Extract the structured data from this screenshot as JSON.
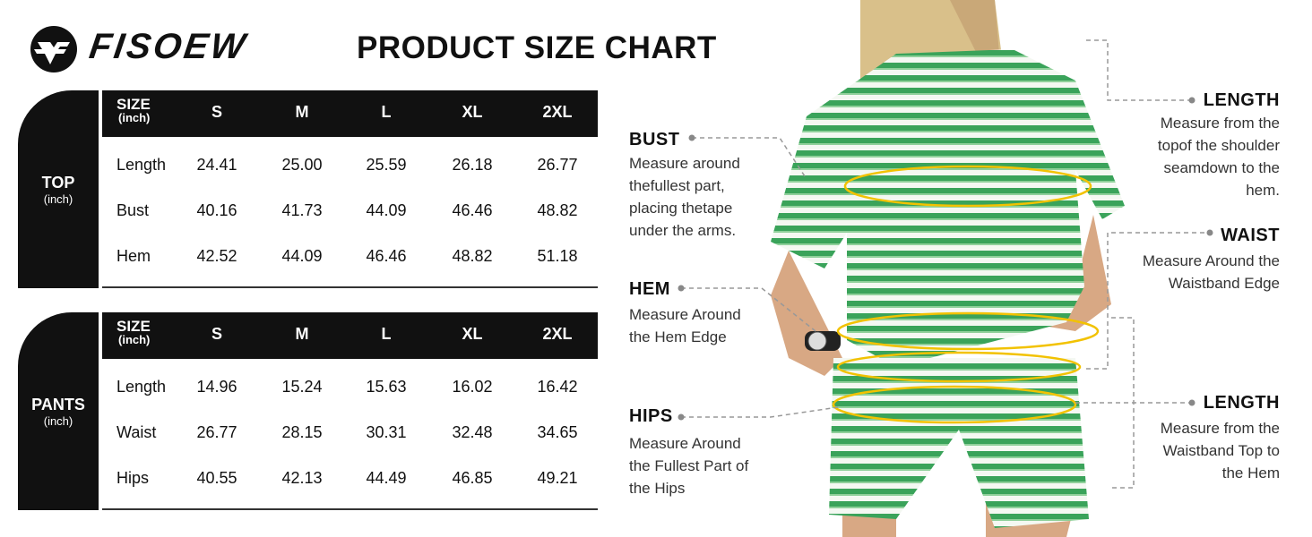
{
  "brand": {
    "name": "FISOEW"
  },
  "title": "PRODUCT SIZE CHART",
  "tables": [
    {
      "section": "TOP",
      "unit": "(inch)",
      "size_label": "SIZE",
      "size_unit": "(inch)",
      "sizes": [
        "S",
        "M",
        "L",
        "XL",
        "2XL"
      ],
      "rows": [
        {
          "label": "Length",
          "values": [
            "24.41",
            "25.00",
            "25.59",
            "26.18",
            "26.77"
          ]
        },
        {
          "label": "Bust",
          "values": [
            "40.16",
            "41.73",
            "44.09",
            "46.46",
            "48.82"
          ]
        },
        {
          "label": "Hem",
          "values": [
            "42.52",
            "44.09",
            "46.46",
            "48.82",
            "51.18"
          ]
        }
      ]
    },
    {
      "section": "PANTS",
      "unit": "(inch)",
      "size_label": "SIZE",
      "size_unit": "(inch)",
      "sizes": [
        "S",
        "M",
        "L",
        "XL",
        "2XL"
      ],
      "rows": [
        {
          "label": "Length",
          "values": [
            "14.96",
            "15.24",
            "15.63",
            "16.02",
            "16.42"
          ]
        },
        {
          "label": "Waist",
          "values": [
            "26.77",
            "28.15",
            "30.31",
            "32.48",
            "34.65"
          ]
        },
        {
          "label": "Hips",
          "values": [
            "40.55",
            "42.13",
            "44.49",
            "46.85",
            "49.21"
          ]
        }
      ]
    }
  ],
  "annotations": {
    "bust": {
      "label": "BUST",
      "lines": [
        "Measure around",
        "thefullest part,",
        "placing thetape",
        "under the arms."
      ]
    },
    "hem": {
      "label": "HEM",
      "lines": [
        "Measure Around",
        "the Hem Edge"
      ]
    },
    "hips": {
      "label": "HIPS",
      "lines": [
        "Measure Around",
        "the Fullest Part of",
        "the Hips"
      ]
    },
    "top_length": {
      "label": "LENGTH",
      "lines": [
        "Measure from the",
        "topof the shoulder",
        "seamdown to the",
        "hem."
      ]
    },
    "waist": {
      "label": "WAIST",
      "lines": [
        "Measure Around the",
        "Waistband Edge"
      ]
    },
    "pants_length": {
      "label": "LENGTH",
      "lines": [
        "Measure from the",
        "Waistband Top to",
        "the Hem"
      ]
    }
  },
  "colors": {
    "black": "#111111",
    "stripe_green": "#3aa35a",
    "measure_line": "#f2c200"
  }
}
